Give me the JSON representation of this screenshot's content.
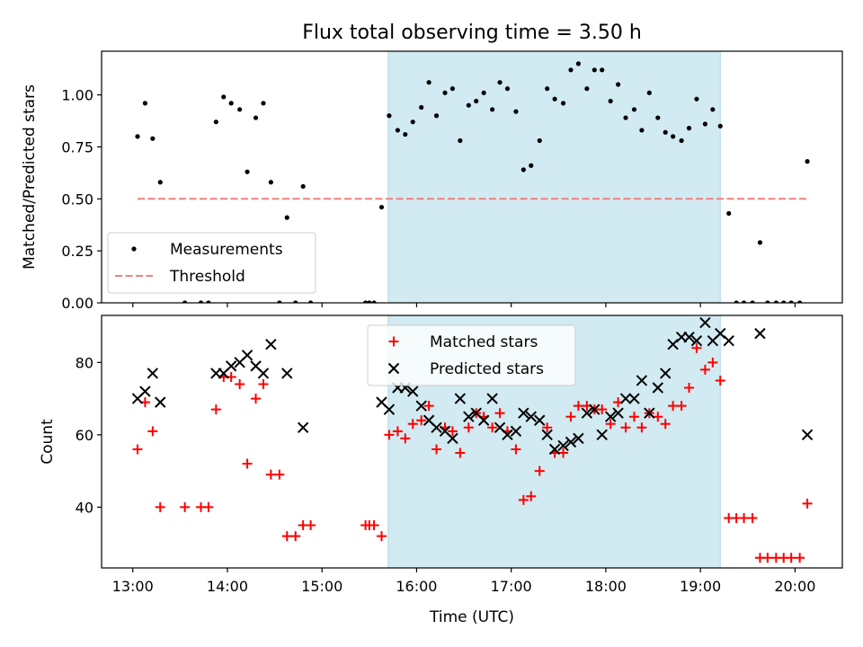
{
  "chart_data": {
    "type": "scatter",
    "title": "Flux total observing time = 3.50 h",
    "xlabel": "Time (UTC)",
    "x_unit": "hours UTC",
    "xlim": [
      12.67,
      20.5
    ],
    "xticks": [
      13,
      14,
      15,
      16,
      17,
      18,
      19,
      20
    ],
    "xtick_labels": [
      "13:00",
      "14:00",
      "15:00",
      "16:00",
      "17:00",
      "18:00",
      "19:00",
      "20:00"
    ],
    "observing_window": {
      "start": 15.7,
      "end": 19.21,
      "color": "#add8e6"
    },
    "panels": [
      {
        "id": "ratio",
        "ylabel": "Matched/Predicted stars",
        "ylim": [
          0.0,
          1.21
        ],
        "yticks": [
          0.0,
          0.25,
          0.5,
          0.75,
          1.0
        ],
        "ytick_labels": [
          "0.00",
          "0.25",
          "0.50",
          "0.75",
          "1.00"
        ],
        "legend": {
          "placement": "lower-left",
          "entries": [
            "Measurements",
            "Threshold"
          ]
        },
        "series": [
          {
            "name": "Measurements",
            "marker": "dot",
            "color": "#000000",
            "x": [
              13.05,
              13.13,
              13.21,
              13.29,
              13.55,
              13.72,
              13.8,
              13.88,
              13.96,
              14.04,
              14.13,
              14.21,
              14.3,
              14.38,
              14.46,
              14.55,
              14.63,
              14.72,
              14.8,
              14.88,
              15.46,
              15.5,
              15.55,
              15.63,
              15.71,
              15.8,
              15.88,
              15.96,
              16.05,
              16.13,
              16.21,
              16.3,
              16.38,
              16.46,
              16.55,
              16.63,
              16.71,
              16.8,
              16.88,
              16.96,
              17.05,
              17.13,
              17.21,
              17.3,
              17.38,
              17.46,
              17.55,
              17.63,
              17.71,
              17.8,
              17.88,
              17.96,
              18.05,
              18.13,
              18.21,
              18.3,
              18.38,
              18.46,
              18.55,
              18.63,
              18.71,
              18.8,
              18.88,
              18.96,
              19.05,
              19.13,
              19.21,
              19.3,
              19.38,
              19.46,
              19.55,
              19.63,
              19.71,
              19.8,
              19.88,
              19.96,
              20.05,
              20.13
            ],
            "y": [
              0.8,
              0.96,
              0.79,
              0.58,
              0.0,
              0.0,
              0.0,
              0.87,
              0.99,
              0.96,
              0.93,
              0.63,
              0.89,
              0.96,
              0.58,
              0.0,
              0.41,
              0.0,
              0.56,
              0.0,
              0.0,
              0.0,
              0.0,
              0.46,
              0.9,
              0.83,
              0.81,
              0.87,
              0.94,
              1.06,
              0.9,
              1.01,
              1.03,
              0.78,
              0.95,
              0.97,
              1.01,
              0.93,
              1.06,
              1.03,
              0.92,
              0.64,
              0.66,
              0.78,
              1.03,
              0.98,
              0.96,
              1.12,
              1.15,
              1.03,
              1.12,
              1.12,
              0.97,
              1.05,
              0.89,
              0.93,
              0.83,
              1.01,
              0.89,
              0.82,
              0.8,
              0.78,
              0.84,
              0.98,
              0.86,
              0.93,
              0.85,
              0.43,
              0.0,
              0.0,
              0.0,
              0.29,
              0.0,
              0.0,
              0.0,
              0.0,
              0.0,
              0.68
            ]
          },
          {
            "name": "Threshold",
            "style": "dashed",
            "color": "#f08080",
            "x": [
              13.05,
              20.13
            ],
            "y": [
              0.5,
              0.5
            ]
          }
        ]
      },
      {
        "id": "counts",
        "ylabel": "Count",
        "ylim": [
          23.2,
          93.0
        ],
        "yticks": [
          40,
          60,
          80
        ],
        "ytick_labels": [
          "40",
          "60",
          "80"
        ],
        "legend": {
          "placement": "upper-center",
          "entries": [
            "Matched stars",
            "Predicted stars"
          ]
        },
        "series": [
          {
            "name": "Matched stars",
            "marker": "plus",
            "color": "#ff0000",
            "x": [
              13.05,
              13.13,
              13.21,
              13.29,
              13.55,
              13.72,
              13.8,
              13.88,
              13.96,
              14.04,
              14.13,
              14.21,
              14.3,
              14.38,
              14.46,
              14.55,
              14.63,
              14.72,
              14.8,
              14.88,
              15.46,
              15.5,
              15.55,
              15.63,
              15.71,
              15.8,
              15.88,
              15.96,
              16.05,
              16.13,
              16.21,
              16.3,
              16.38,
              16.46,
              16.55,
              16.63,
              16.71,
              16.8,
              16.88,
              16.96,
              17.05,
              17.13,
              17.21,
              17.3,
              17.38,
              17.46,
              17.55,
              17.63,
              17.71,
              17.8,
              17.88,
              17.96,
              18.05,
              18.13,
              18.21,
              18.3,
              18.38,
              18.46,
              18.55,
              18.63,
              18.71,
              18.8,
              18.88,
              18.96,
              19.05,
              19.13,
              19.21,
              19.3,
              19.38,
              19.46,
              19.55,
              19.63,
              19.71,
              19.8,
              19.88,
              19.96,
              20.05,
              20.13
            ],
            "y": [
              56,
              69,
              61,
              40,
              40,
              40,
              40,
              67,
              76,
              76,
              74,
              52,
              70,
              74,
              49,
              49,
              32,
              32,
              35,
              35,
              35,
              35,
              35,
              32,
              60,
              61,
              59,
              63,
              64,
              68,
              56,
              62,
              61,
              55,
              62,
              66,
              65,
              62,
              66,
              61,
              56,
              42,
              43,
              50,
              62,
              55,
              55,
              65,
              68,
              68,
              67,
              67,
              63,
              69,
              62,
              65,
              62,
              66,
              65,
              63,
              68,
              68,
              73,
              84,
              78,
              80,
              75,
              37,
              37,
              37,
              37,
              26,
              26,
              26,
              26,
              26,
              26,
              41
            ]
          },
          {
            "name": "Predicted stars",
            "marker": "x",
            "color": "#000000",
            "x": [
              13.05,
              13.13,
              13.21,
              13.29,
              13.88,
              13.96,
              14.04,
              14.13,
              14.21,
              14.3,
              14.38,
              14.46,
              14.63,
              14.8,
              15.63,
              15.71,
              15.8,
              15.88,
              15.96,
              16.05,
              16.13,
              16.21,
              16.3,
              16.38,
              16.46,
              16.55,
              16.63,
              16.71,
              16.8,
              16.88,
              16.96,
              17.05,
              17.13,
              17.21,
              17.3,
              17.38,
              17.46,
              17.55,
              17.63,
              17.71,
              17.8,
              17.88,
              17.96,
              18.05,
              18.13,
              18.21,
              18.3,
              18.38,
              18.46,
              18.55,
              18.63,
              18.71,
              18.8,
              18.88,
              18.96,
              19.05,
              19.13,
              19.21,
              19.3,
              19.63,
              20.13
            ],
            "y": [
              70,
              72,
              77,
              69,
              77,
              77,
              79,
              80,
              82,
              79,
              77,
              85,
              77,
              62,
              69,
              67,
              73,
              73,
              72,
              68,
              64,
              62,
              61,
              59,
              70,
              65,
              66,
              64,
              70,
              62,
              60,
              61,
              66,
              65,
              64,
              60,
              56,
              57,
              58,
              59,
              66,
              67,
              60,
              65,
              66,
              70,
              70,
              75,
              66,
              73,
              77,
              85,
              87,
              87,
              86,
              91,
              86,
              88,
              86,
              88,
              60
            ]
          }
        ]
      }
    ]
  }
}
